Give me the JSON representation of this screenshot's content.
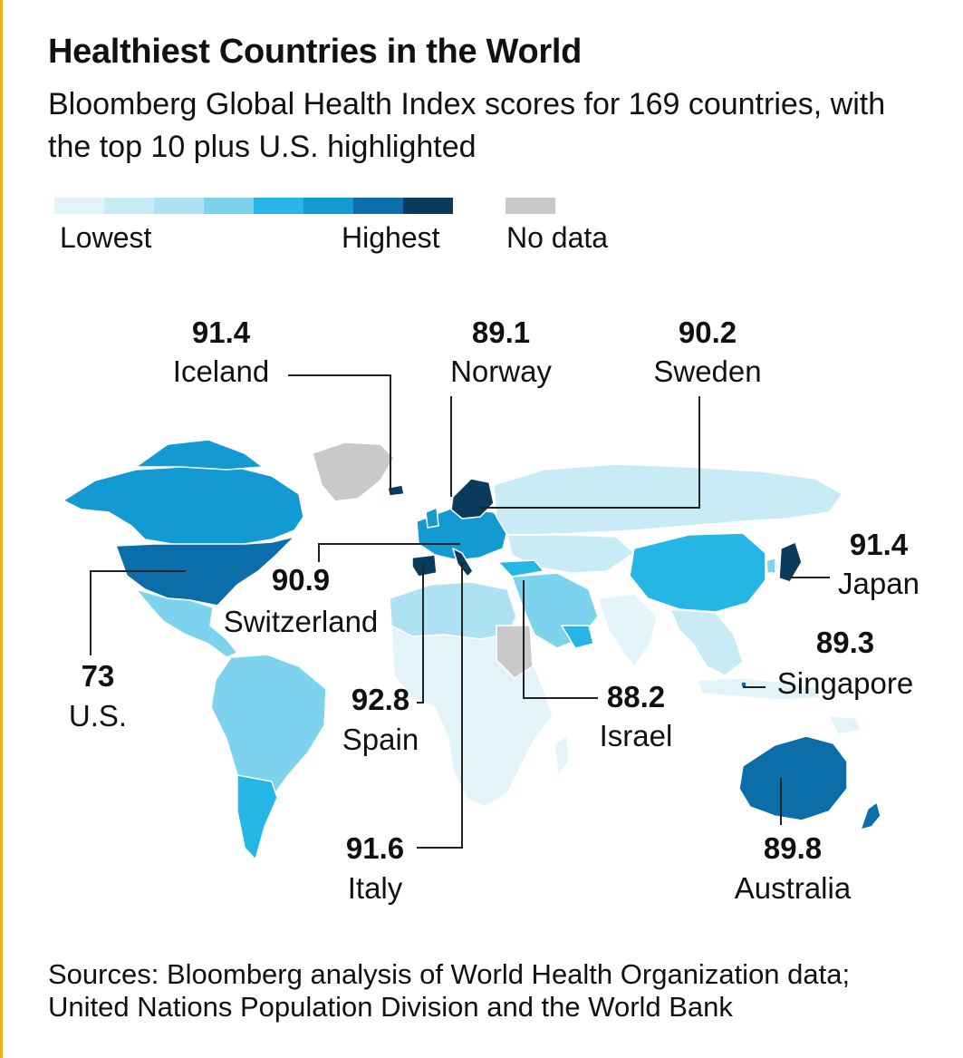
{
  "title": "Healthiest Countries in the World",
  "subtitle": "Bloomberg Global Health Index scores for 169 countries, with the top 10 plus U.S. highlighted",
  "legend": {
    "scale_colors": [
      "#e3f3fa",
      "#c9ebf5",
      "#ace2f1",
      "#7dd3ee",
      "#25b6e6",
      "#149ad2",
      "#0b6ea9",
      "#0a3a5c"
    ],
    "low_label": "Lowest",
    "high_label": "Highest",
    "nodata_label": "No data",
    "nodata_color": "#c9c9c9"
  },
  "countries": [
    {
      "name": "Iceland",
      "score": "91.4"
    },
    {
      "name": "Norway",
      "score": "89.1"
    },
    {
      "name": "Sweden",
      "score": "90.2"
    },
    {
      "name": "Japan",
      "score": "91.4"
    },
    {
      "name": "Switzerland",
      "score": "90.9"
    },
    {
      "name": "Singapore",
      "score": "89.3"
    },
    {
      "name": "U.S.",
      "score": "73"
    },
    {
      "name": "Spain",
      "score": "92.8"
    },
    {
      "name": "Israel",
      "score": "88.2"
    },
    {
      "name": "Italy",
      "score": "91.6"
    },
    {
      "name": "Australia",
      "score": "89.8"
    }
  ],
  "source": "Sources: Bloomberg analysis of World Health Organization data; United Nations Population Division and the World Bank"
}
